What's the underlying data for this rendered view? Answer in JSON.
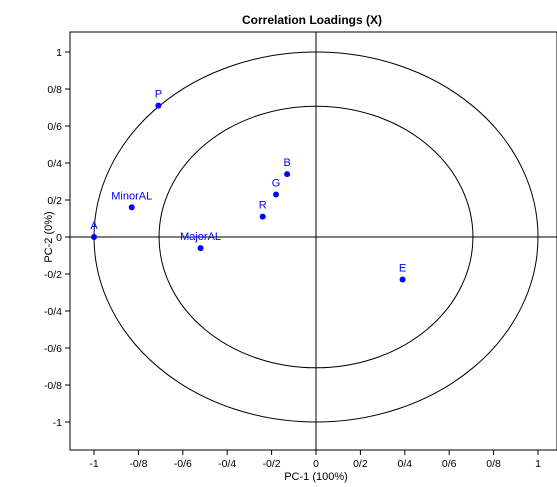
{
  "chart_data": {
    "type": "scatter",
    "title": "Correlation Loadings (X)",
    "xlabel": "PC-1 (100%)",
    "ylabel": "PC-2 (0%)",
    "xlim": [
      -1.1,
      1.08
    ],
    "ylim": [
      -1.1,
      1.08
    ],
    "xticks": [
      {
        "value": -1,
        "label": "-1"
      },
      {
        "value": -0.8,
        "label": "-0/8"
      },
      {
        "value": -0.6,
        "label": "-0/6"
      },
      {
        "value": -0.4,
        "label": "-0/4"
      },
      {
        "value": -0.2,
        "label": "-0/2"
      },
      {
        "value": 0,
        "label": "0"
      },
      {
        "value": 0.2,
        "label": "0/2"
      },
      {
        "value": 0.4,
        "label": "0/4"
      },
      {
        "value": 0.6,
        "label": "0/6"
      },
      {
        "value": 0.8,
        "label": "0/8"
      },
      {
        "value": 1,
        "label": "1"
      }
    ],
    "yticks": [
      {
        "value": 1,
        "label": "1"
      },
      {
        "value": 0.8,
        "label": "0/8"
      },
      {
        "value": 0.6,
        "label": "0/6"
      },
      {
        "value": 0.4,
        "label": "0/4"
      },
      {
        "value": 0.2,
        "label": "0/2"
      },
      {
        "value": 0,
        "label": "0"
      },
      {
        "value": -0.2,
        "label": "-0/2"
      },
      {
        "value": -0.4,
        "label": "-0/4"
      },
      {
        "value": -0.6,
        "label": "-0/6"
      },
      {
        "value": -0.8,
        "label": "-0/8"
      },
      {
        "value": -1,
        "label": "-1"
      }
    ],
    "circles": [
      1.0,
      0.707
    ],
    "grid": false,
    "point_color": "#0000ff",
    "points": [
      {
        "label": "P",
        "x": -0.71,
        "y": 0.71
      },
      {
        "label": "MinorAL",
        "x": -0.83,
        "y": 0.16
      },
      {
        "label": "A",
        "x": -1.0,
        "y": 0.0
      },
      {
        "label": "MajorAL",
        "x": -0.52,
        "y": -0.06
      },
      {
        "label": "R",
        "x": -0.24,
        "y": 0.11
      },
      {
        "label": "G",
        "x": -0.18,
        "y": 0.23
      },
      {
        "label": "B",
        "x": -0.13,
        "y": 0.34
      },
      {
        "label": "E",
        "x": 0.39,
        "y": -0.23
      }
    ]
  }
}
